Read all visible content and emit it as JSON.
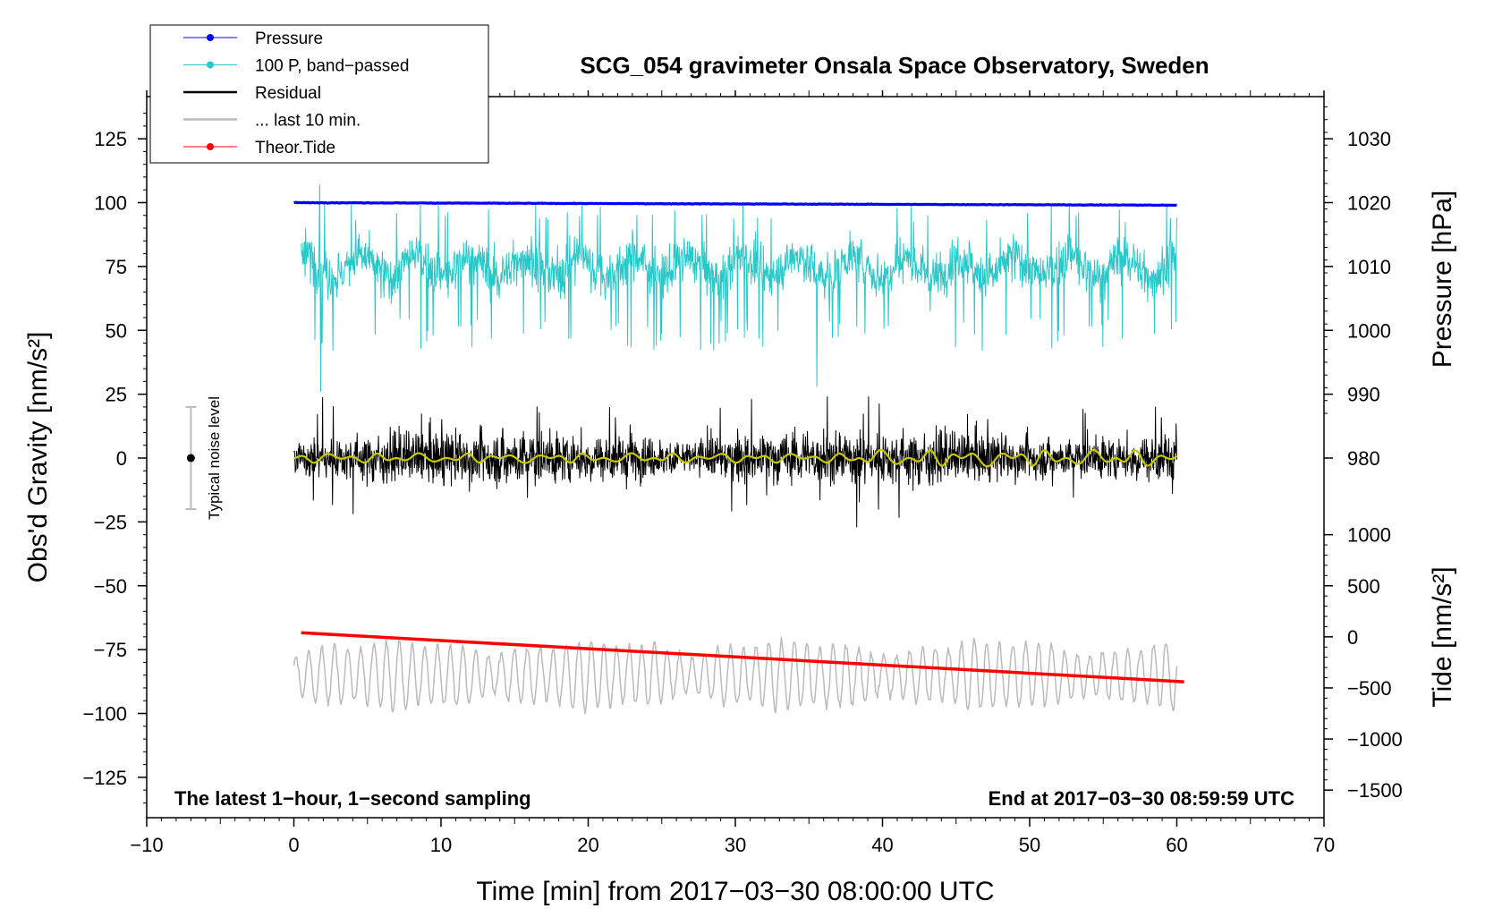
{
  "chart_data": {
    "type": "line",
    "title": "SCG_054 gravimeter Onsala Space Observatory, Sweden",
    "xlabel": "Time [min] from 2017−03−30 08:00:00 UTC",
    "ylabel_left": "Obs'd Gravity [nm/s²]",
    "ylabel_right_pressure": "Pressure [hPa]",
    "ylabel_right_tide": "Tide [nm/s²]",
    "xlim": [
      -10,
      70
    ],
    "ylim_left": [
      -140,
      140
    ],
    "x_ticks": [
      -10,
      0,
      10,
      20,
      30,
      40,
      50,
      60,
      70
    ],
    "x_tick_labels": [
      "−10",
      "0",
      "10",
      "20",
      "30",
      "40",
      "50",
      "60",
      "70"
    ],
    "y_left_ticks": [
      125,
      100,
      75,
      50,
      25,
      0,
      -25,
      -50,
      -75,
      -100,
      -125
    ],
    "y_left_tick_labels": [
      "125",
      "100",
      "75",
      "50",
      "25",
      "0",
      "−25",
      "−50",
      "−75",
      "−100",
      "−125"
    ],
    "pressure_ticks": [
      1030,
      1020,
      1010,
      1000,
      990,
      980
    ],
    "pressure_tick_labels": [
      "1030",
      "1020",
      "1010",
      "1000",
      "990",
      "980"
    ],
    "pressure_scale": {
      "ref_hpa": 1020,
      "ref_gravity": 100,
      "nm_s2_per_hpa": 2.5
    },
    "tide_ticks": [
      1000,
      500,
      0,
      -500,
      -1000,
      -1500
    ],
    "tide_tick_labels": [
      "1000",
      "500",
      "0",
      "−500",
      "−1000",
      "−1500"
    ],
    "tide_scale": {
      "ref_tide": 0,
      "ref_gravity": -70,
      "nm_s2_per_nm_s2": 0.04
    },
    "legend": {
      "placement": "top-left",
      "entries": [
        {
          "label": "Pressure",
          "color": "#0000ff",
          "marker": true
        },
        {
          "label": "100 P, band−passed",
          "color": "#2ac8c8",
          "marker": true
        },
        {
          "label": "Residual",
          "color": "#000000",
          "marker": false
        },
        {
          "label": "... last 10 min.",
          "color": "#bbbbbb",
          "marker": false
        },
        {
          "label": "Theor.Tide",
          "color": "#ff0000",
          "marker": true
        }
      ]
    },
    "series": [
      {
        "name": "Pressure",
        "color": "#0000ff",
        "x_range": [
          0,
          60
        ],
        "pressure_start_hpa": 1020.0,
        "pressure_end_hpa": 1019.6
      },
      {
        "name": "100 P, band−passed",
        "color": "#2ac8c8",
        "x_range": [
          0.5,
          60
        ],
        "mean": 75,
        "typical_min": 42,
        "typical_max": 100,
        "extreme_min": 26,
        "extreme_max": 107
      },
      {
        "name": "Residual",
        "color": "#000000",
        "x_range": [
          0,
          60
        ],
        "mean": 0,
        "typical_amplitude": 10,
        "extreme_min": -27,
        "extreme_max": 24
      },
      {
        "name": "Residual smoothed",
        "color": "#c8c800",
        "x_range": [
          0,
          60
        ],
        "mean": 0,
        "amplitude": 3
      },
      {
        "name": "... last 10 min.",
        "color": "#bbbbbb",
        "x_range": [
          0,
          60
        ],
        "mean": -85,
        "min": -106,
        "max": -63
      },
      {
        "name": "Theor.Tide",
        "color": "#ff0000",
        "x": [
          0.5,
          60.5
        ],
        "tide_values": [
          40,
          -440
        ]
      }
    ],
    "noise_bar": {
      "label": "Typical noise level",
      "x": -7,
      "center": 0,
      "low": -20,
      "high": 20
    },
    "annotation_left": "The latest 1−hour, 1−second sampling",
    "annotation_right": "End at 2017−03−30 08:59:59 UTC"
  }
}
